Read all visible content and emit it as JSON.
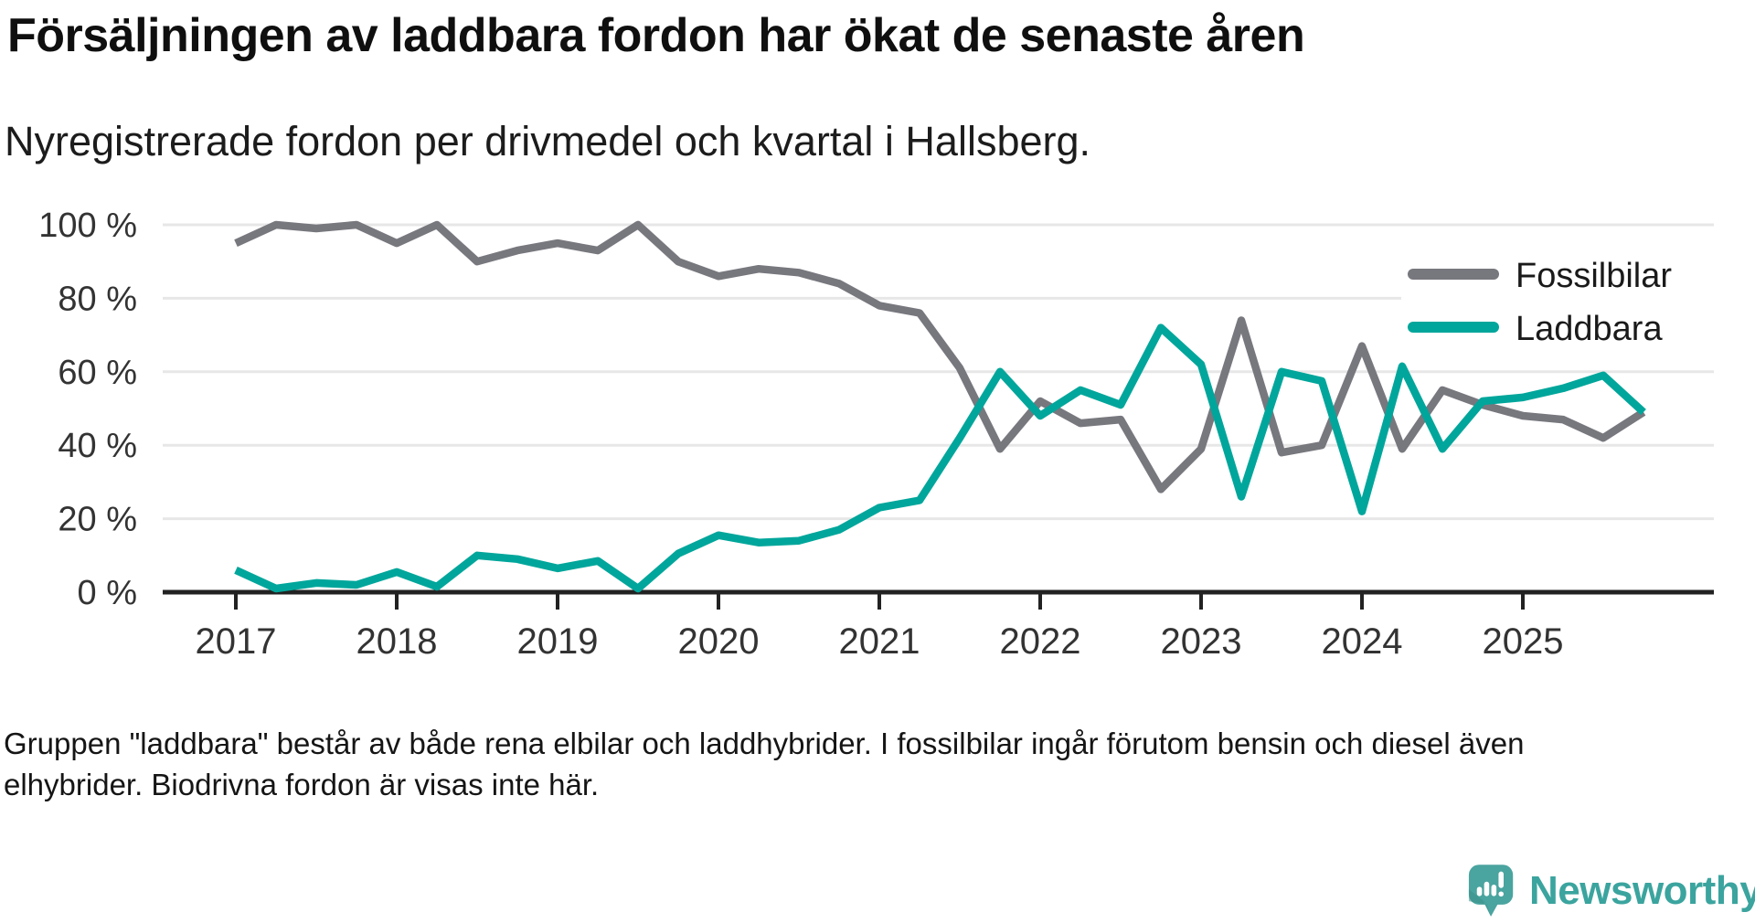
{
  "chart_data": {
    "type": "line",
    "title": "Försäljningen av laddbara fordon har ökat de senaste åren",
    "subtitle": "Nyregistrerade fordon per drivmedel och kvartal i Hallsberg.",
    "grid": true,
    "legend_position": "top-right",
    "ylim": [
      0,
      100
    ],
    "y_ticks": [
      {
        "value": 0,
        "label": "0 %"
      },
      {
        "value": 20,
        "label": "20 %"
      },
      {
        "value": 40,
        "label": "40 %"
      },
      {
        "value": 60,
        "label": "60 %"
      },
      {
        "value": 80,
        "label": "80 %"
      },
      {
        "value": 100,
        "label": "100 %"
      }
    ],
    "x_ticks": [
      {
        "label": "2017",
        "q": 0
      },
      {
        "label": "2018",
        "q": 4
      },
      {
        "label": "2019",
        "q": 8
      },
      {
        "label": "2020",
        "q": 12
      },
      {
        "label": "2021",
        "q": 16
      },
      {
        "label": "2022",
        "q": 20
      },
      {
        "label": "2023",
        "q": 24
      },
      {
        "label": "2024",
        "q": 28
      },
      {
        "label": "2025",
        "q": 32
      }
    ],
    "x": [
      "2017Q1",
      "2017Q2",
      "2017Q3",
      "2017Q4",
      "2018Q1",
      "2018Q2",
      "2018Q3",
      "2018Q4",
      "2019Q1",
      "2019Q2",
      "2019Q3",
      "2019Q4",
      "2020Q1",
      "2020Q2",
      "2020Q3",
      "2020Q4",
      "2021Q1",
      "2021Q2",
      "2021Q3",
      "2021Q4",
      "2022Q1",
      "2022Q2",
      "2022Q3",
      "2022Q4",
      "2023Q1",
      "2023Q2",
      "2023Q3",
      "2023Q4",
      "2024Q1",
      "2024Q2",
      "2024Q3",
      "2024Q4",
      "2025Q1",
      "2025Q2",
      "2025Q3",
      "2025Q4"
    ],
    "series": [
      {
        "name": "Fossilbilar",
        "color": "#77777e",
        "values": [
          95,
          100,
          99,
          100,
          95,
          100,
          90,
          93,
          95,
          93,
          100,
          90,
          86,
          88,
          87,
          84,
          78,
          76,
          61,
          39,
          52,
          46,
          47,
          28,
          39,
          74,
          38,
          40,
          67,
          39,
          55,
          51,
          48,
          47,
          42,
          49
        ]
      },
      {
        "name": "Laddbara",
        "color": "#00a69b",
        "values": [
          6,
          1,
          2.5,
          2,
          5.5,
          1.5,
          10,
          9,
          6.5,
          8.5,
          1,
          10.5,
          15.5,
          13.5,
          14,
          17,
          23,
          25,
          42,
          60,
          48,
          55,
          51,
          72,
          62,
          26,
          60,
          57.5,
          22,
          61.5,
          39,
          52,
          53,
          55.5,
          59,
          49
        ]
      }
    ]
  },
  "axis_colors": {
    "grid": "#e7e7e7",
    "axis_line": "#222222",
    "tick_label": "#333333"
  },
  "footer": {
    "line1": "Gruppen \"laddbara\" består av både rena elbilar och laddhybrider. I fossilbilar ingår förutom bensin och diesel även",
    "line2": "elhybrider. Biodrivna fordon är visas inte här."
  },
  "logo": {
    "text": "Newsworthy",
    "icon": "bar-chart-speech-bubble-icon",
    "bubble_color": "#4aa49f",
    "bubble_shade_color": "#3c8f8b",
    "text_color": "#3ba49e"
  }
}
